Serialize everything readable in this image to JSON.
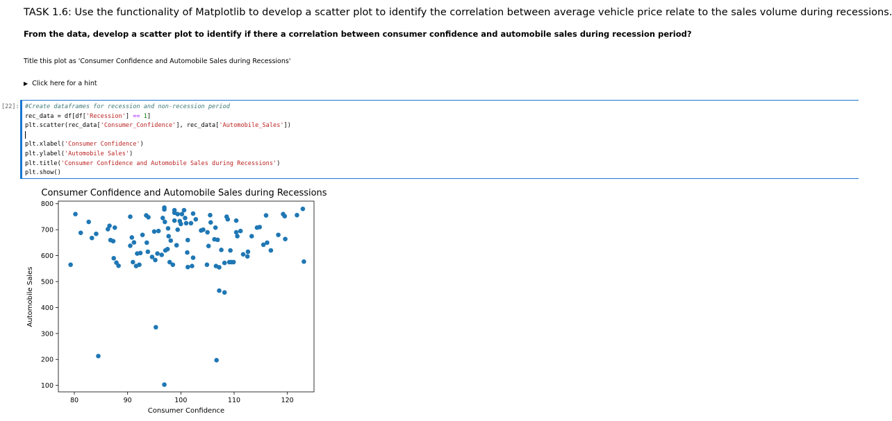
{
  "markdown": {
    "heading": "TASK 1.6: Use the functionality of Matplotlib to develop a scatter plot to identify the correlation between average vehicle price relate to the sales volume during recessions.",
    "subheading": "From the data, develop a scatter plot to identify if there a correlation between consumer confidence and automobile sales during recession period?",
    "instruction": "Title this plot as 'Consumer Confidence and Automobile Sales during Recessions'",
    "hint_label": "Click here for a hint"
  },
  "cell": {
    "prompt": "[22]:",
    "code_lines": [
      "#Create dataframes for recession and non-recession period",
      "rec_data = df[df['Recession'] == 1]",
      "plt.scatter(rec_data['Consumer_Confidence'], rec_data['Automobile_Sales'])",
      "",
      "plt.xlabel('Consumer Confidence')",
      "plt.ylabel('Automobile Sales')",
      "plt.title('Consumer Confidence and Automobile Sales during Recessions')",
      "plt.show()"
    ]
  },
  "colors": {
    "marker": "#1f77b4",
    "cell_border": "#1976d2"
  },
  "chart_data": {
    "type": "scatter",
    "title": "Consumer Confidence and Automobile Sales during Recessions",
    "xlabel": "Consumer Confidence",
    "ylabel": "Automobile Sales",
    "xlim": [
      77,
      125
    ],
    "ylim": [
      75,
      810
    ],
    "xticks": [
      80,
      90,
      100,
      110,
      120
    ],
    "yticks": [
      100,
      200,
      300,
      400,
      500,
      600,
      700,
      800
    ],
    "grid": false,
    "points": [
      [
        79.3,
        565
      ],
      [
        80.2,
        760
      ],
      [
        81.2,
        688
      ],
      [
        82.7,
        730
      ],
      [
        83.3,
        668
      ],
      [
        84.1,
        684
      ],
      [
        84.5,
        213
      ],
      [
        86.3,
        702
      ],
      [
        86.6,
        715
      ],
      [
        86.8,
        660
      ],
      [
        87.3,
        656
      ],
      [
        87.6,
        708
      ],
      [
        87.4,
        590
      ],
      [
        87.9,
        573
      ],
      [
        88.3,
        561
      ],
      [
        90.5,
        750
      ],
      [
        90.5,
        638
      ],
      [
        90.8,
        670
      ],
      [
        91,
        575
      ],
      [
        91.2,
        651
      ],
      [
        91.6,
        560
      ],
      [
        91.8,
        608
      ],
      [
        92.2,
        565
      ],
      [
        92.4,
        610
      ],
      [
        92.8,
        680
      ],
      [
        93.5,
        755
      ],
      [
        93.6,
        650
      ],
      [
        93.9,
        748
      ],
      [
        93.8,
        615
      ],
      [
        94.6,
        595
      ],
      [
        95,
        693
      ],
      [
        95.2,
        583
      ],
      [
        95.3,
        324
      ],
      [
        95.6,
        608
      ],
      [
        95.8,
        695
      ],
      [
        96.4,
        603
      ],
      [
        96.6,
        745
      ],
      [
        96.9,
        785
      ],
      [
        96.9,
        778
      ],
      [
        97,
        730
      ],
      [
        97.1,
        620
      ],
      [
        96.9,
        103
      ],
      [
        97.5,
        625
      ],
      [
        97.6,
        705
      ],
      [
        97.7,
        675
      ],
      [
        97.9,
        575
      ],
      [
        98.1,
        658
      ],
      [
        98.5,
        565
      ],
      [
        98.8,
        735
      ],
      [
        98.8,
        775
      ],
      [
        98.8,
        765
      ],
      [
        99.2,
        640
      ],
      [
        99.4,
        760
      ],
      [
        99.4,
        700
      ],
      [
        99.8,
        733
      ],
      [
        100,
        722
      ],
      [
        100.2,
        760
      ],
      [
        100.6,
        775
      ],
      [
        100.8,
        745
      ],
      [
        101,
        725
      ],
      [
        101.3,
        660
      ],
      [
        101.2,
        612
      ],
      [
        101.3,
        556
      ],
      [
        101.9,
        725
      ],
      [
        102.1,
        560
      ],
      [
        102.3,
        592
      ],
      [
        102.3,
        762
      ],
      [
        102.8,
        740
      ],
      [
        103.8,
        697
      ],
      [
        104.2,
        700
      ],
      [
        104.9,
        565
      ],
      [
        105,
        690
      ],
      [
        105.2,
        637
      ],
      [
        105.5,
        756
      ],
      [
        105.6,
        728
      ],
      [
        106.3,
        663
      ],
      [
        106.5,
        708
      ],
      [
        106.6,
        560
      ],
      [
        106.7,
        197
      ],
      [
        106.9,
        661
      ],
      [
        107.2,
        555
      ],
      [
        107.2,
        465
      ],
      [
        107.6,
        622
      ],
      [
        108.2,
        572
      ],
      [
        108.2,
        458
      ],
      [
        108.6,
        750
      ],
      [
        108.8,
        740
      ],
      [
        109.1,
        575
      ],
      [
        109.3,
        620
      ],
      [
        109.5,
        575
      ],
      [
        109.9,
        575
      ],
      [
        110.4,
        735
      ],
      [
        110.4,
        690
      ],
      [
        110.6,
        675
      ],
      [
        111.2,
        695
      ],
      [
        111.7,
        605
      ],
      [
        112.5,
        597
      ],
      [
        112.6,
        615
      ],
      [
        113.3,
        675
      ],
      [
        114.3,
        708
      ],
      [
        114.8,
        710
      ],
      [
        115.5,
        642
      ],
      [
        116,
        755
      ],
      [
        116.2,
        650
      ],
      [
        116.9,
        620
      ],
      [
        118.3,
        680
      ],
      [
        119.2,
        760
      ],
      [
        119.5,
        752
      ],
      [
        119.6,
        664
      ],
      [
        121.8,
        756
      ],
      [
        122.9,
        780
      ],
      [
        123.1,
        577
      ]
    ]
  }
}
